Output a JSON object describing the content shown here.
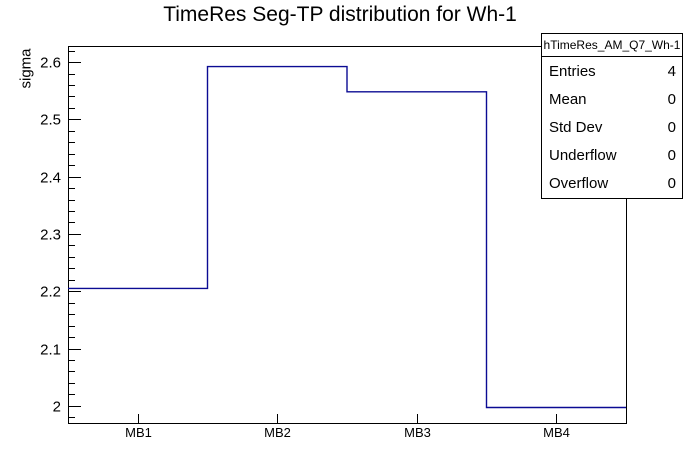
{
  "title": "TimeRes Seg-TP distribution for Wh-1",
  "y_axis_label": "sigma",
  "stats": {
    "title": "hTimeRes_AM_Q7_Wh-1",
    "rows": [
      {
        "label": "Entries",
        "value": "4"
      },
      {
        "label": "Mean",
        "value": "0"
      },
      {
        "label": "Std Dev",
        "value": "0"
      },
      {
        "label": "Underflow",
        "value": "0"
      },
      {
        "label": "Overflow",
        "value": "0"
      }
    ]
  },
  "chart_data": {
    "type": "line",
    "style": "step-histogram",
    "title": "TimeRes Seg-TP distribution for Wh-1",
    "xlabel": "",
    "ylabel": "sigma",
    "categories": [
      "MB1",
      "MB2",
      "MB3",
      "MB4"
    ],
    "values": [
      2.205,
      2.592,
      2.548,
      1.997
    ],
    "ylim": [
      1.97,
      2.628
    ],
    "y_major_ticks": [
      2,
      2.1,
      2.2,
      2.3,
      2.4,
      2.5,
      2.6
    ],
    "y_tick_labels": [
      "2",
      "2.1",
      "2.2",
      "2.3",
      "2.4",
      "2.5",
      "2.6"
    ],
    "y_minor_tick_step": 0.02,
    "x_tick_position": "bin-center",
    "grid": false,
    "legend_position": "none",
    "line_color": "#0b0b93"
  },
  "colors": {
    "line": "#0b0b93",
    "axis": "#000000",
    "background": "#ffffff"
  }
}
